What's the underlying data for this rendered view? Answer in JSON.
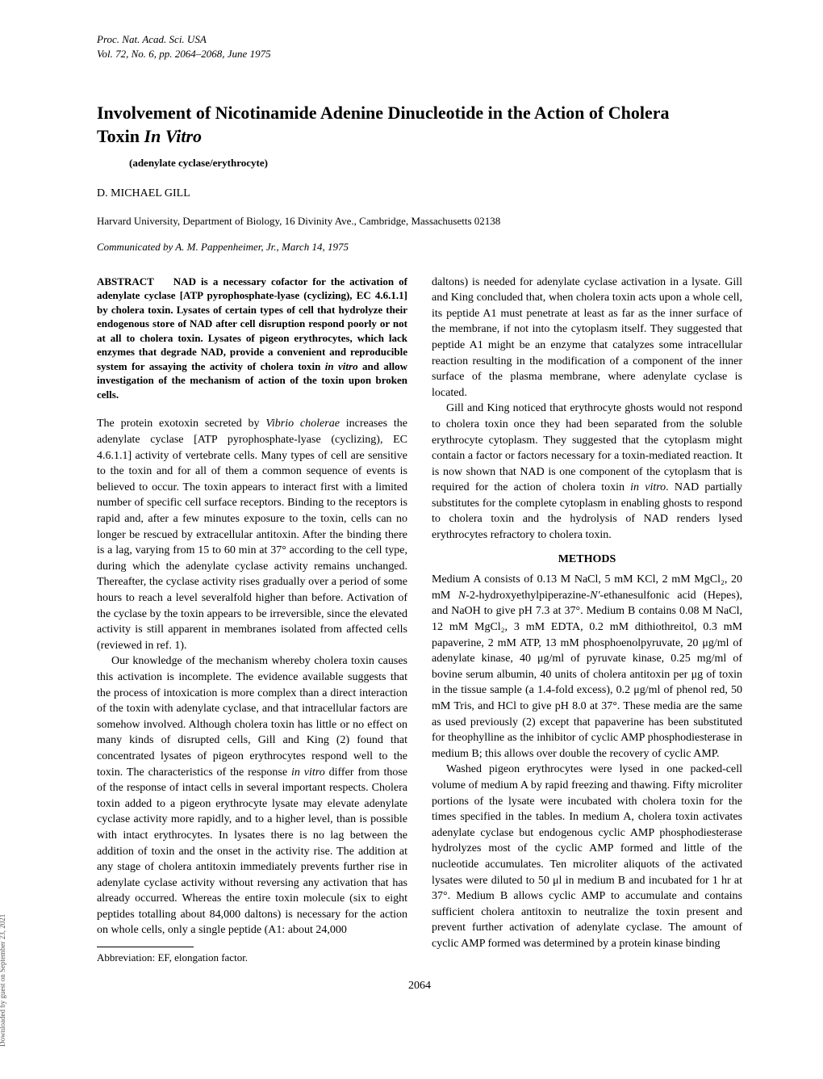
{
  "header": {
    "journal": "Proc. Nat. Acad. Sci. USA",
    "volume": "Vol. 72, No. 6, pp. 2064–2068, June 1975"
  },
  "title1": "Involvement of Nicotinamide Adenine Dinucleotide in the Action of Cholera",
  "title2a": "Toxin ",
  "title2b": "In Vitro",
  "subtitle": "(adenylate cyclase/erythrocyte)",
  "author": "D. MICHAEL GILL",
  "affiliation": "Harvard University, Department of Biology, 16 Divinity Ave., Cambridge, Massachusetts 02138",
  "communicated": "Communicated by A. M. Pappenheimer, Jr., March 14, 1975",
  "abstract_label": "ABSTRACT",
  "abstract_text1": "NAD is a necessary cofactor for the activation of adenylate cyclase [ATP pyrophosphate-lyase (cyclizing), EC 4.6.1.1] by cholera toxin. Lysates of certain types of cell that hydrolyze their endogenous store of NAD after cell disruption respond poorly or not at all to cholera toxin. Lysates of pigeon erythrocytes, which lack enzymes that degrade NAD, provide a convenient and reproducible system for assaying the activity of cholera toxin ",
  "abstract_italic": "in vitro",
  "abstract_text2": " and allow investigation of the mechanism of action of the toxin upon broken cells.",
  "left_p1a": "The protein exotoxin secreted by ",
  "left_p1_italic": "Vibrio cholerae",
  "left_p1b": " increases the adenylate cyclase [ATP pyrophosphate-lyase (cyclizing), EC 4.6.1.1] activity of vertebrate cells. Many types of cell are sensitive to the toxin and for all of them a common sequence of events is believed to occur. The toxin appears to interact first with a limited number of specific cell surface receptors. Binding to the receptors is rapid and, after a few minutes exposure to the toxin, cells can no longer be rescued by extracellular antitoxin. After the binding there is a lag, varying from 15 to 60 min at 37° according to the cell type, during which the adenylate cyclase activity remains unchanged. Thereafter, the cyclase activity rises gradually over a period of some hours to reach a level severalfold higher than before. Activation of the cyclase by the toxin appears to be irreversible, since the elevated activity is still apparent in membranes isolated from affected cells (reviewed in ref. 1).",
  "left_p2a": "Our knowledge of the mechanism whereby cholera toxin causes this activation is incomplete. The evidence available suggests that the process of intoxication is more complex than a direct interaction of the toxin with adenylate cyclase, and that intracellular factors are somehow involved. Although cholera toxin has little or no effect on many kinds of disrupted cells, Gill and King (2) found that concentrated lysates of pigeon erythrocytes respond well to the toxin. The characteristics of the response ",
  "left_p2_italic": "in vitro",
  "left_p2b": " differ from those of the response of intact cells in several important respects. Cholera toxin added to a pigeon erythrocyte lysate may elevate adenylate cyclase activity more rapidly, and to a higher level, than is possible with intact erythrocytes. In lysates there is no lag between the addition of toxin and the onset in the activity rise. The addition at any stage of cholera antitoxin immediately prevents further rise in adenylate cyclase activity without reversing any activation that has already occurred. Whereas the entire toxin molecule (six to eight peptides totalling about 84,000 daltons) is necessary for the action on whole cells, only a single peptide (A1: about 24,000",
  "footnote": "Abbreviation: EF, elongation factor.",
  "right_p1": "daltons) is needed for adenylate cyclase activation in a lysate. Gill and King concluded that, when cholera toxin acts upon a whole cell, its peptide A1 must penetrate at least as far as the inner surface of the membrane, if not into the cytoplasm itself. They suggested that peptide A1 might be an enzyme that catalyzes some intracellular reaction resulting in the modification of a component of the inner surface of the plasma membrane, where adenylate cyclase is located.",
  "right_p2a": "Gill and King noticed that erythrocyte ghosts would not respond to cholera toxin once they had been separated from the soluble erythrocyte cytoplasm. They suggested that the cytoplasm might contain a factor or factors necessary for a toxin-mediated reaction. It is now shown that NAD is one component of the cytoplasm that is required for the action of cholera toxin ",
  "right_p2_italic": "in vitro",
  "right_p2b": ". NAD partially substitutes for the complete cytoplasm in enabling ghosts to respond to cholera toxin and the hydrolysis of NAD renders lysed erythrocytes refractory to cholera toxin.",
  "methods_heading": "METHODS",
  "right_p3a": "Medium A consists of 0.13 M NaCl, 5 mM KCl, 2 mM MgCl₂, 20 mM ",
  "right_p3_italic1": "N",
  "right_p3b": "-2-hydroxyethylpiperazine-",
  "right_p3_italic2": "N′",
  "right_p3c": "-ethanesulfonic acid (Hepes), and NaOH to give pH 7.3 at 37°. Medium B contains 0.08 M NaCl, 12 mM MgCl₂, 3 mM EDTA, 0.2 mM dithiothreitol, 0.3 mM papaverine, 2 mM ATP, 13 mM phosphoenolpyruvate, 20 μg/ml of adenylate kinase, 40 μg/ml of pyruvate kinase, 0.25 mg/ml of bovine serum albumin, 40 units of cholera antitoxin per μg of toxin in the tissue sample (a 1.4-fold excess), 0.2 μg/ml of phenol red, 50 mM Tris, and HCl to give pH 8.0 at 37°. These media are the same as used previously (2) except that papaverine has been substituted for theophylline as the inhibitor of cyclic AMP phosphodiesterase in medium B; this allows over double the recovery of cyclic AMP.",
  "right_p4": "Washed pigeon erythrocytes were lysed in one packed-cell volume of medium A by rapid freezing and thawing. Fifty microliter portions of the lysate were incubated with cholera toxin for the times specified in the tables. In medium A, cholera toxin activates adenylate cyclase but endogenous cyclic AMP phosphodiesterase hydrolyzes most of the cyclic AMP formed and little of the nucleotide accumulates. Ten microliter aliquots of the activated lysates were diluted to 50 μl in medium B and incubated for 1 hr at 37°. Medium B allows cyclic AMP to accumulate and contains sufficient cholera antitoxin to neutralize the toxin present and prevent further activation of adenylate cyclase. The amount of cyclic AMP formed was determined by a protein kinase binding",
  "page_number": "2064",
  "side": "Downloaded by guest on September 23, 2021"
}
